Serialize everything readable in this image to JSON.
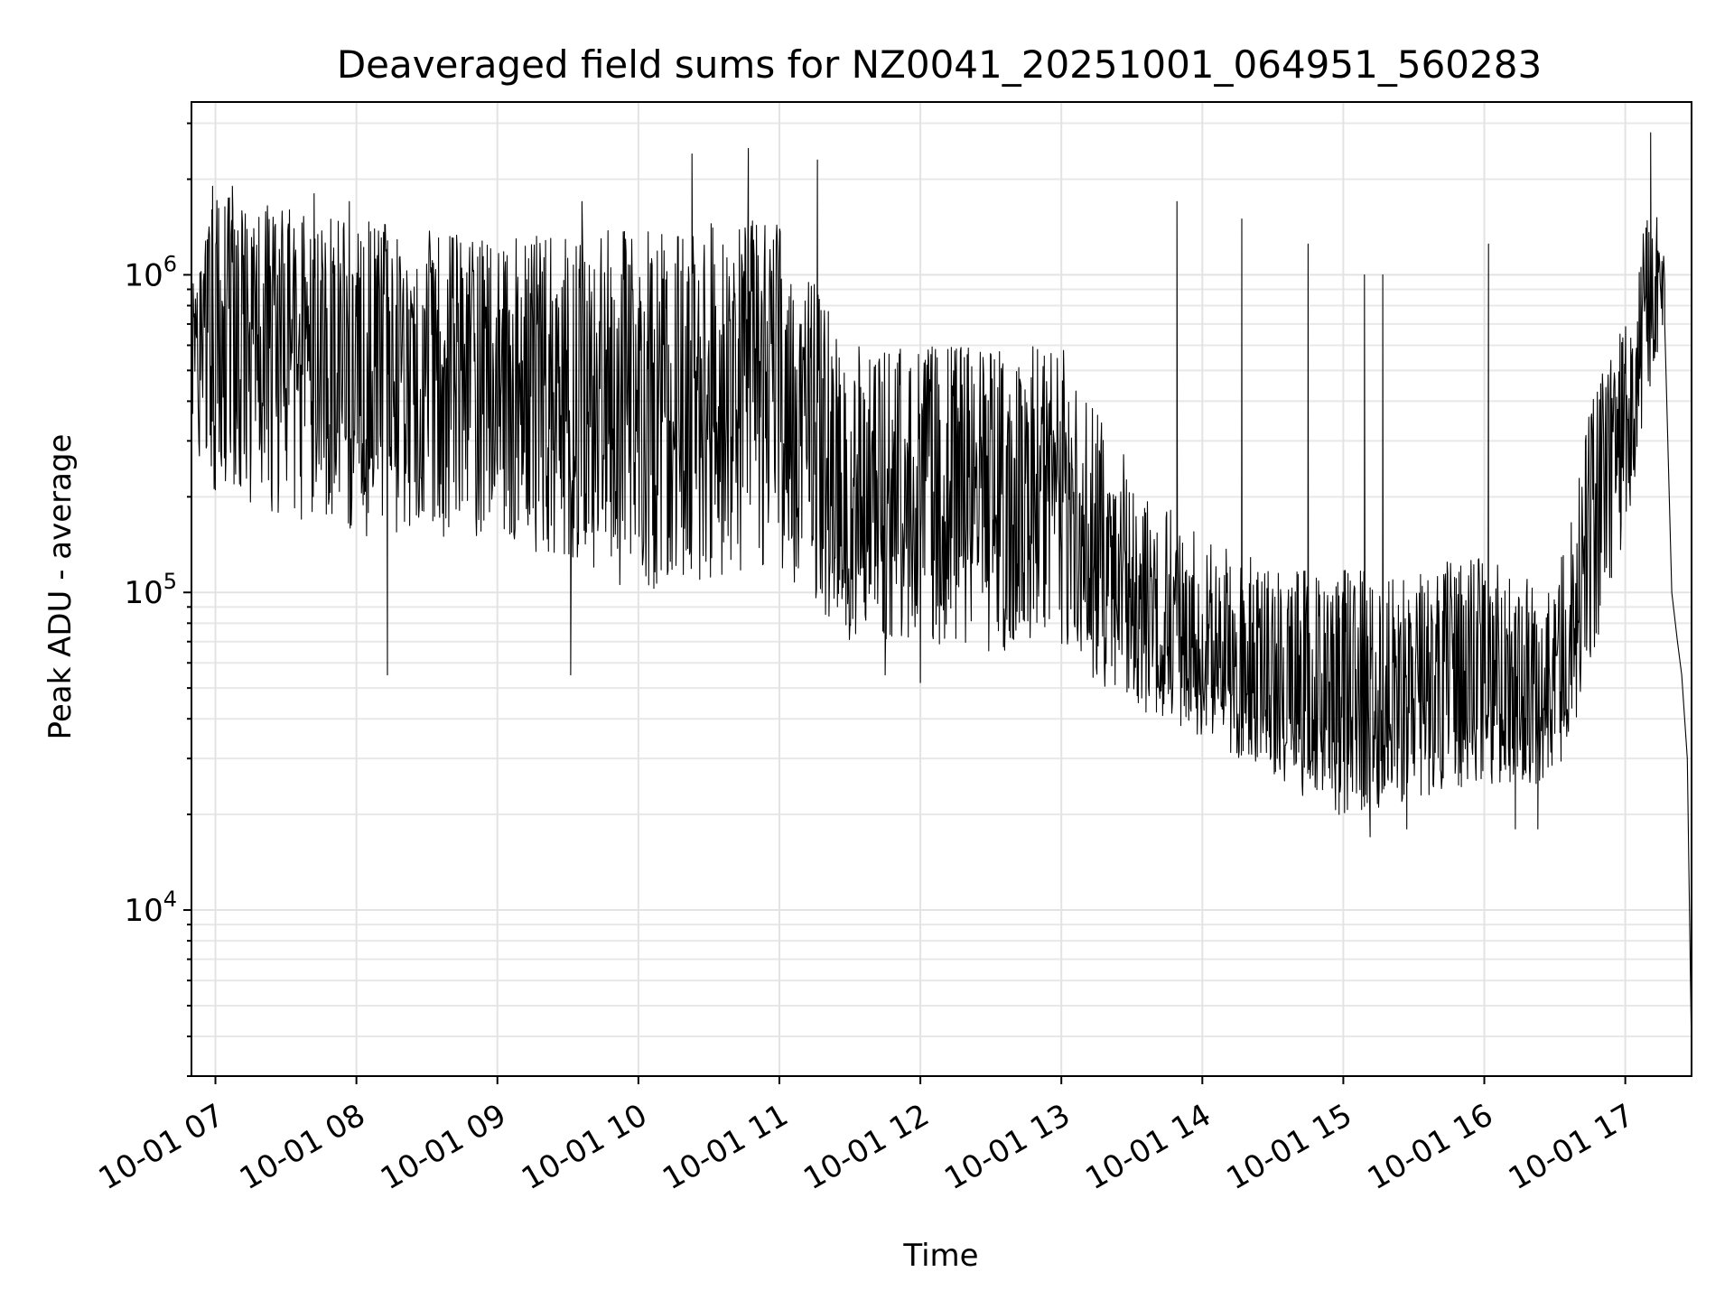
{
  "chart_data": {
    "type": "line",
    "title": "Deaveraged field sums for NZ0041_20251001_064951_560283",
    "xlabel": "Time",
    "ylabel": "Peak ADU - average",
    "yscale": "log",
    "ylim": [
      3000,
      3500000
    ],
    "xlim_hours": [
      6.83,
      17.47
    ],
    "grid": true,
    "x_ticks": [
      {
        "hour": 7,
        "label": "10-01 07"
      },
      {
        "hour": 8,
        "label": "10-01 08"
      },
      {
        "hour": 9,
        "label": "10-01 09"
      },
      {
        "hour": 10,
        "label": "10-01 10"
      },
      {
        "hour": 11,
        "label": "10-01 11"
      },
      {
        "hour": 12,
        "label": "10-01 12"
      },
      {
        "hour": 13,
        "label": "10-01 13"
      },
      {
        "hour": 14,
        "label": "10-01 14"
      },
      {
        "hour": 15,
        "label": "10-01 15"
      },
      {
        "hour": 16,
        "label": "10-01 16"
      },
      {
        "hour": 17,
        "label": "10-01 17"
      }
    ],
    "y_ticks": [
      {
        "value": 10000,
        "base": "10",
        "exp": "4"
      },
      {
        "value": 100000,
        "base": "10",
        "exp": "5"
      },
      {
        "value": 1000000,
        "base": "10",
        "exp": "6"
      }
    ],
    "series": [
      {
        "name": "Peak ADU - average",
        "color": "#000000",
        "baseline_profile": [
          {
            "hour": 6.83,
            "median": 550000,
            "low": 300000,
            "high": 900000
          },
          {
            "hour": 7.0,
            "median": 600000,
            "low": 200000,
            "high": 1800000
          },
          {
            "hour": 8.0,
            "median": 550000,
            "low": 150000,
            "high": 1500000
          },
          {
            "hour": 9.0,
            "median": 450000,
            "low": 150000,
            "high": 1300000
          },
          {
            "hour": 10.0,
            "median": 380000,
            "low": 100000,
            "high": 1400000
          },
          {
            "hour": 11.0,
            "median": 450000,
            "low": 120000,
            "high": 1500000
          },
          {
            "hour": 11.5,
            "median": 150000,
            "low": 70000,
            "high": 600000
          },
          {
            "hour": 12.0,
            "median": 180000,
            "low": 70000,
            "high": 600000
          },
          {
            "hour": 13.0,
            "median": 180000,
            "low": 60000,
            "high": 600000
          },
          {
            "hour": 13.5,
            "median": 80000,
            "low": 45000,
            "high": 250000
          },
          {
            "hour": 14.0,
            "median": 60000,
            "low": 35000,
            "high": 150000
          },
          {
            "hour": 14.5,
            "median": 45000,
            "low": 25000,
            "high": 120000
          },
          {
            "hour": 15.0,
            "median": 45000,
            "low": 20000,
            "high": 120000
          },
          {
            "hour": 15.5,
            "median": 45000,
            "low": 22000,
            "high": 120000
          },
          {
            "hour": 16.0,
            "median": 50000,
            "low": 25000,
            "high": 130000
          },
          {
            "hour": 16.5,
            "median": 40000,
            "low": 25000,
            "high": 100000
          },
          {
            "hour": 16.8,
            "median": 150000,
            "low": 60000,
            "high": 500000
          },
          {
            "hour": 17.0,
            "median": 300000,
            "low": 150000,
            "high": 700000
          },
          {
            "hour": 17.2,
            "median": 1000000,
            "low": 500000,
            "high": 2000000
          },
          {
            "hour": 17.28,
            "median": 800000,
            "low": 600000,
            "high": 1200000
          }
        ],
        "spikes": [
          {
            "hour": 6.98,
            "value": 1900000
          },
          {
            "hour": 7.12,
            "value": 1900000
          },
          {
            "hour": 7.7,
            "value": 1800000
          },
          {
            "hour": 7.95,
            "value": 1700000
          },
          {
            "hour": 8.22,
            "value": 55000
          },
          {
            "hour": 9.52,
            "value": 55000
          },
          {
            "hour": 9.6,
            "value": 1700000
          },
          {
            "hour": 10.38,
            "value": 2400000
          },
          {
            "hour": 10.78,
            "value": 2500000
          },
          {
            "hour": 11.27,
            "value": 2300000
          },
          {
            "hour": 11.75,
            "value": 55000
          },
          {
            "hour": 12.0,
            "value": 52000
          },
          {
            "hour": 13.6,
            "value": 42000
          },
          {
            "hour": 13.82,
            "value": 1700000
          },
          {
            "hour": 14.28,
            "value": 1500000
          },
          {
            "hour": 14.75,
            "value": 1250000
          },
          {
            "hour": 14.97,
            "value": 20000
          },
          {
            "hour": 15.15,
            "value": 1000000
          },
          {
            "hour": 15.19,
            "value": 17000
          },
          {
            "hour": 15.28,
            "value": 1000000
          },
          {
            "hour": 15.45,
            "value": 18000
          },
          {
            "hour": 16.03,
            "value": 1250000
          },
          {
            "hour": 16.22,
            "value": 18000
          },
          {
            "hour": 16.38,
            "value": 18000
          },
          {
            "hour": 17.18,
            "value": 2800000
          }
        ],
        "tail": [
          {
            "hour": 17.28,
            "value": 700000
          },
          {
            "hour": 17.33,
            "value": 100000
          },
          {
            "hour": 17.37,
            "value": 70000
          },
          {
            "hour": 17.4,
            "value": 55000
          },
          {
            "hour": 17.44,
            "value": 30000
          },
          {
            "hour": 17.47,
            "value": 3500
          }
        ]
      }
    ]
  }
}
